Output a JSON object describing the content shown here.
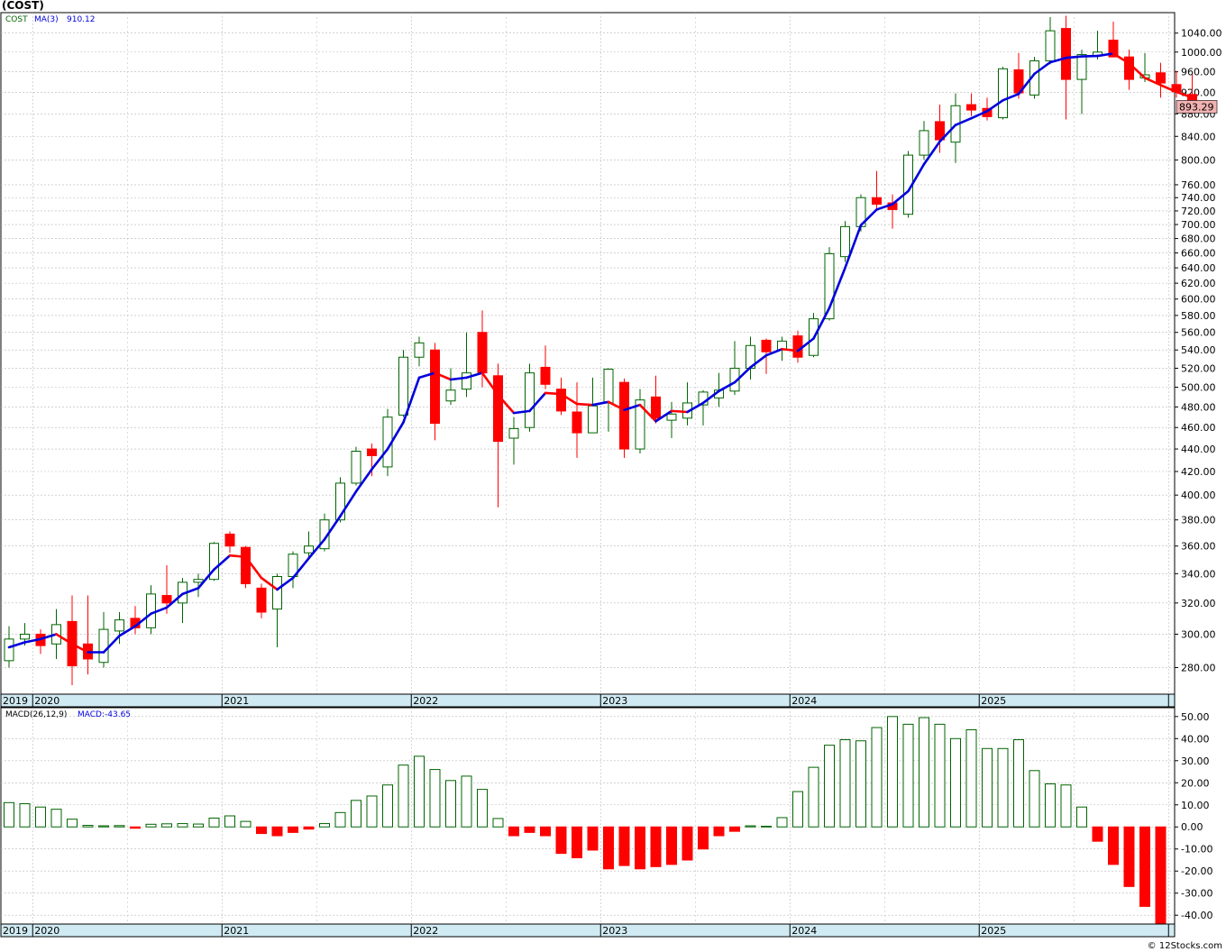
{
  "title": "(COST)",
  "watermark": "© 12Stocks.com",
  "price_legend": {
    "symbol": "COST",
    "ma_label": "MA(3)",
    "ma_value": "910.12"
  },
  "macd_legend": {
    "label": "MACD(26,12,9)",
    "value": "MACD:-43.65"
  },
  "last_price": "893.29",
  "colors": {
    "up": "#006400",
    "down": "#ff0000",
    "ma_up": "#0000dd",
    "ma_down": "#ff0000",
    "axis_band": "#cfeaf2",
    "grid": "#b8b8b8",
    "last_price_bg": "#f2b2b2"
  },
  "chart_data": [
    {
      "type": "candlestick",
      "period": "monthly",
      "start": "2019-11",
      "year_labels": [
        "2019",
        "2020",
        "2021",
        "2022",
        "2023",
        "2024",
        "2025"
      ],
      "y_ticks": [
        280,
        300,
        320,
        340,
        360,
        380,
        400,
        420,
        440,
        460,
        480,
        500,
        520,
        540,
        560,
        580,
        600,
        620,
        640,
        660,
        680,
        700,
        720,
        740,
        760,
        800,
        840,
        880,
        920,
        960,
        1000,
        1040
      ],
      "y_tick_labels": [
        "280.00",
        "300.00",
        "320.00",
        "340.00",
        "360.00",
        "380.00",
        "400.00",
        "420.00",
        "440.00",
        "460.00",
        "480.00",
        "500.00",
        "520.00",
        "540.00",
        "560.00",
        "580.00",
        "600.00",
        "620.00",
        "640.00",
        "660.00",
        "680.00",
        "700.00",
        "720.00",
        "740.00",
        "760.00",
        "800.00",
        "840.00",
        "880.00",
        "920.00",
        "960.00",
        "1000.00",
        "1040.00"
      ],
      "y_scale": "log",
      "ylim": [
        265,
        1085
      ],
      "ohlc": [
        [
          284,
          305,
          280,
          297
        ],
        [
          297,
          307,
          293,
          300
        ],
        [
          300,
          303,
          288,
          293
        ],
        [
          294,
          316,
          285,
          306
        ],
        [
          308,
          325,
          270,
          281
        ],
        [
          294,
          325,
          276,
          285
        ],
        [
          283,
          314,
          280,
          303
        ],
        [
          302,
          314,
          294,
          309
        ],
        [
          310,
          318,
          300,
          304
        ],
        [
          304,
          332,
          300,
          326
        ],
        [
          325,
          346,
          313,
          320
        ],
        [
          320,
          337,
          307,
          334
        ],
        [
          334,
          340,
          324,
          336
        ],
        [
          336,
          363,
          335,
          362
        ],
        [
          369,
          371,
          355,
          360
        ],
        [
          359,
          360,
          330,
          333
        ],
        [
          330,
          333,
          310,
          314
        ],
        [
          316,
          340,
          292,
          338
        ],
        [
          338,
          356,
          330,
          354
        ],
        [
          355,
          371,
          352,
          360
        ],
        [
          358,
          385,
          356,
          380
        ],
        [
          380,
          415,
          378,
          410
        ],
        [
          410,
          442,
          408,
          438
        ],
        [
          440,
          445,
          416,
          434
        ],
        [
          424,
          478,
          416,
          470
        ],
        [
          472,
          540,
          470,
          532
        ],
        [
          532,
          555,
          522,
          548
        ],
        [
          540,
          548,
          448,
          464
        ],
        [
          486,
          520,
          482,
          497
        ],
        [
          498,
          560,
          490,
          515
        ],
        [
          560,
          586,
          500,
          515
        ],
        [
          512,
          525,
          390,
          447
        ],
        [
          450,
          470,
          426,
          459
        ],
        [
          460,
          525,
          456,
          515
        ],
        [
          521,
          545,
          498,
          503
        ],
        [
          498,
          510,
          472,
          476
        ],
        [
          475,
          505,
          432,
          455
        ],
        [
          455,
          510,
          455,
          481
        ],
        [
          484,
          520,
          456,
          519
        ],
        [
          505,
          509,
          432,
          440
        ],
        [
          440,
          498,
          436,
          487
        ],
        [
          490,
          512,
          464,
          469
        ],
        [
          467,
          485,
          450,
          473
        ],
        [
          469,
          505,
          462,
          484
        ],
        [
          482,
          497,
          462,
          495
        ],
        [
          489,
          515,
          480,
          497
        ],
        [
          496,
          550,
          492,
          520
        ],
        [
          520,
          555,
          508,
          545
        ],
        [
          551,
          553,
          514,
          538
        ],
        [
          540,
          555,
          528,
          550
        ],
        [
          556,
          562,
          526,
          532
        ],
        [
          534,
          583,
          532,
          576
        ],
        [
          576,
          668,
          574,
          659
        ],
        [
          655,
          705,
          648,
          697
        ],
        [
          697,
          745,
          690,
          740
        ],
        [
          740,
          782,
          720,
          730
        ],
        [
          732,
          745,
          694,
          722
        ],
        [
          715,
          815,
          710,
          808
        ],
        [
          808,
          867,
          800,
          850
        ],
        [
          866,
          897,
          812,
          834
        ],
        [
          830,
          918,
          795,
          895
        ],
        [
          897,
          918,
          876,
          887
        ],
        [
          890,
          910,
          868,
          875
        ],
        [
          873,
          970,
          870,
          966
        ],
        [
          964,
          998,
          908,
          919
        ],
        [
          915,
          990,
          908,
          982
        ],
        [
          982,
          1075,
          975,
          1045
        ],
        [
          1050,
          1078,
          870,
          945
        ],
        [
          945,
          1005,
          880,
          995
        ],
        [
          992,
          1045,
          985,
          1000
        ],
        [
          1025,
          1065,
          990,
          990
        ],
        [
          990,
          1005,
          925,
          945
        ],
        [
          948,
          998,
          940,
          954
        ],
        [
          958,
          978,
          910,
          938
        ],
        [
          935,
          962,
          910,
          921
        ],
        [
          916,
          955,
          880,
          893
        ]
      ],
      "ma": [
        292,
        295,
        297,
        300,
        294,
        289,
        289,
        299,
        305,
        313,
        317,
        326,
        330,
        343,
        353,
        352,
        337,
        329,
        337,
        351,
        365,
        383,
        403,
        422,
        440,
        465,
        510,
        515,
        508,
        510,
        515,
        492,
        474,
        476,
        494,
        493,
        483,
        482,
        485,
        477,
        482,
        466,
        476,
        475,
        484,
        496,
        505,
        521,
        534,
        541,
        539,
        553,
        589,
        640,
        699,
        722,
        730,
        750,
        793,
        831,
        860,
        872,
        885,
        905,
        917,
        956,
        979,
        988,
        991,
        992,
        997,
        977,
        948,
        934,
        921,
        910
      ]
    },
    {
      "type": "bar",
      "name": "MACD(26,12,9)",
      "y_ticks": [
        -40,
        -30,
        -20,
        -10,
        0,
        10,
        20,
        30,
        40,
        50
      ],
      "y_tick_labels": [
        "-40.00",
        "-30.00",
        "-20.00",
        "-10.00",
        "0.00",
        "10.00",
        "20.00",
        "30.00",
        "40.00",
        "50.00"
      ],
      "ylim": [
        -44,
        54
      ],
      "year_labels": [
        "2019",
        "2020",
        "2021",
        "2022",
        "2023",
        "2024",
        "2025"
      ],
      "values": [
        11,
        10.5,
        9,
        8,
        3.5,
        0.7,
        0.5,
        0.6,
        -0.6,
        1.2,
        1.4,
        1.5,
        1.3,
        4,
        5,
        2.5,
        -3,
        -4,
        -2.5,
        -1,
        1.5,
        6.5,
        12,
        14,
        19,
        28,
        32,
        26,
        21,
        23,
        17,
        3.8,
        -4,
        -2.5,
        -4,
        -12,
        -14,
        -10.5,
        -19,
        -17.5,
        -19,
        -18,
        -17,
        -15,
        -10,
        -4,
        -2,
        0.5,
        0.3,
        4.2,
        16,
        27,
        37,
        39.5,
        39,
        45,
        50,
        46.5,
        49.5,
        46.5,
        40,
        44,
        35.5,
        35.5,
        39.5,
        25.5,
        19.5,
        19,
        9,
        -6.5,
        -17,
        -27,
        -36,
        -43.65
      ]
    }
  ]
}
